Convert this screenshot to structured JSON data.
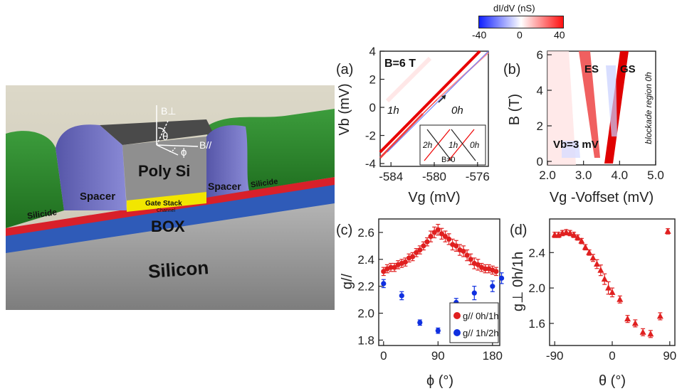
{
  "device": {
    "labels": {
      "poly": "Poly Si",
      "spacer_left": "Spacer",
      "spacer_right": "Spacer",
      "silicide_left": "Silicide",
      "silicide_right": "Silicide",
      "gate_stack": "Gate Stack",
      "channel": "Channel",
      "box": "BOX",
      "silicon": "Silicon",
      "b_perp": "B⊥",
      "b_par": "B//",
      "theta": "θ",
      "phi": "ϕ"
    },
    "colors": {
      "silicide": "#2e8b2e",
      "spacer": "#6f6fc8",
      "poly": "#8f8f8f",
      "box": "#2f5bb8",
      "channel": "#d8202a",
      "gate": "#f2e600",
      "silicon": "#9a9a9a"
    }
  },
  "colorbar": {
    "title": "dI/dV (nS)",
    "ticks": [
      "-40",
      "0",
      "40"
    ],
    "colors": [
      "#1020ff",
      "#ffffff",
      "#ff1010"
    ]
  },
  "panels": {
    "a": {
      "label": "(a)",
      "field": "B=6 T",
      "state_1h": "1h",
      "state_0h": "0h",
      "inset": {
        "s2": "2h",
        "s1": "1h",
        "s0": "0h",
        "cond": "B≠0"
      }
    },
    "b": {
      "label": "(b)",
      "es": "ES",
      "gs": "GS",
      "vb": "Vb=3 mV",
      "region": "blockade region 0h"
    },
    "c": {
      "label": "(c)"
    },
    "d": {
      "label": "(d)"
    }
  },
  "chart_data": [
    {
      "type": "heatmap",
      "panel": "a",
      "xlabel": "Vg (mV)",
      "ylabel": "Vb (mV)",
      "xlim": [
        -585,
        -575
      ],
      "ylim": [
        -4.2,
        4
      ],
      "xticks": [
        "-584",
        "-580",
        "-576"
      ],
      "yticks": [
        "-4",
        "-2",
        "0",
        "2",
        "4"
      ]
    },
    {
      "type": "heatmap",
      "panel": "b",
      "xlabel": "Vg -Voffset (mV)",
      "ylabel": "B (T)",
      "xlim": [
        2.0,
        5.0
      ],
      "ylim": [
        -0.2,
        6.2
      ],
      "xticks": [
        "2.0",
        "3.0",
        "4.0",
        "5.0"
      ],
      "yticks": [
        "0",
        "2",
        "4",
        "6"
      ]
    },
    {
      "type": "scatter",
      "panel": "c",
      "xlabel": "ϕ (°)",
      "ylabel": "g//",
      "xlim": [
        -8,
        192
      ],
      "ylim": [
        1.76,
        2.7
      ],
      "xticks": [
        "0",
        "90",
        "180"
      ],
      "yticks": [
        "1.8",
        "2.0",
        "2.2",
        "2.4",
        "2.6"
      ],
      "legend_position": "bottom-right",
      "series": [
        {
          "name": "g// 0h/1h",
          "color": "#e02020",
          "x": [
            0,
            6,
            12,
            18,
            24,
            30,
            36,
            42,
            48,
            54,
            60,
            66,
            72,
            78,
            84,
            90,
            96,
            102,
            108,
            114,
            120,
            126,
            132,
            138,
            144,
            150,
            156,
            162,
            168,
            174,
            180,
            186
          ],
          "y": [
            2.31,
            2.33,
            2.34,
            2.34,
            2.36,
            2.37,
            2.38,
            2.41,
            2.42,
            2.45,
            2.47,
            2.5,
            2.53,
            2.57,
            2.6,
            2.62,
            2.59,
            2.57,
            2.55,
            2.51,
            2.5,
            2.47,
            2.46,
            2.43,
            2.4,
            2.37,
            2.36,
            2.34,
            2.33,
            2.33,
            2.32,
            2.31
          ],
          "err": [
            0.03,
            0.03,
            0.03,
            0.03,
            0.03,
            0.03,
            0.03,
            0.03,
            0.03,
            0.03,
            0.03,
            0.03,
            0.03,
            0.04,
            0.04,
            0.04,
            0.04,
            0.04,
            0.04,
            0.04,
            0.04,
            0.04,
            0.04,
            0.04,
            0.04,
            0.04,
            0.04,
            0.03,
            0.03,
            0.03,
            0.03,
            0.03
          ]
        },
        {
          "name": "g// 1h/2h",
          "color": "#1030e0",
          "x": [
            0,
            30,
            60,
            90,
            120,
            150,
            180,
            195
          ],
          "y": [
            2.22,
            2.13,
            1.93,
            1.87,
            2.08,
            2.15,
            2.2,
            2.26
          ],
          "err": [
            0.03,
            0.03,
            0.02,
            0.02,
            0.03,
            0.05,
            0.04,
            0.04
          ]
        }
      ]
    },
    {
      "type": "scatter",
      "panel": "d",
      "xlabel": "θ (°)",
      "ylabel": "g⊥ 0h/1h",
      "xlim": [
        -98,
        98
      ],
      "ylim": [
        1.35,
        2.78
      ],
      "xticks": [
        "-90",
        "0",
        "90"
      ],
      "yticks": [
        "1.6",
        "2.0",
        "2.4"
      ],
      "series": [
        {
          "name": "",
          "color": "#e02020",
          "x": [
            -90,
            -84,
            -78,
            -72,
            -66,
            -60,
            -54,
            -48,
            -42,
            -36,
            -30,
            -24,
            -18,
            -12,
            -6,
            0,
            12,
            24,
            36,
            48,
            60,
            75,
            87
          ],
          "y": [
            2.6,
            2.6,
            2.62,
            2.63,
            2.62,
            2.6,
            2.57,
            2.53,
            2.46,
            2.4,
            2.34,
            2.27,
            2.2,
            2.1,
            2.0,
            1.95,
            1.87,
            1.65,
            1.6,
            1.5,
            1.48,
            1.68,
            2.64
          ],
          "err": [
            0.03,
            0.03,
            0.03,
            0.03,
            0.03,
            0.03,
            0.03,
            0.03,
            0.03,
            0.03,
            0.04,
            0.05,
            0.06,
            0.06,
            0.07,
            0.05,
            0.04,
            0.04,
            0.04,
            0.04,
            0.04,
            0.04,
            0.03
          ]
        }
      ]
    }
  ]
}
